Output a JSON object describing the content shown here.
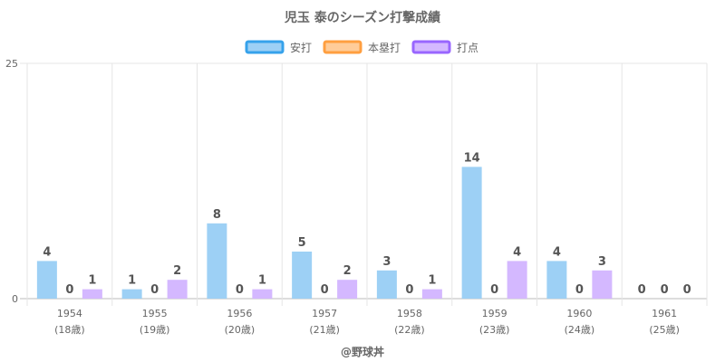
{
  "chart_data": {
    "type": "bar",
    "title": "児玉 泰のシーズン打撃成績",
    "categories": [
      "1954",
      "1955",
      "1956",
      "1957",
      "1958",
      "1959",
      "1960",
      "1961"
    ],
    "category_sublabels": [
      "(18歳)",
      "(19歳)",
      "(20歳)",
      "(21歳)",
      "(22歳)",
      "(23歳)",
      "(24歳)",
      "(25歳)"
    ],
    "series": [
      {
        "name": "安打",
        "values": [
          4,
          1,
          8,
          5,
          3,
          14,
          4,
          0
        ],
        "fill": "#9dd0f5",
        "border": "#36a2eb"
      },
      {
        "name": "本塁打",
        "values": [
          0,
          0,
          0,
          0,
          0,
          0,
          0,
          0
        ],
        "fill": "#ffcc99",
        "border": "#ff9f40"
      },
      {
        "name": "打点",
        "values": [
          1,
          2,
          1,
          2,
          1,
          4,
          3,
          0
        ],
        "fill": "#d4b8ff",
        "border": "#9966ff"
      }
    ],
    "ylim": [
      0,
      25
    ],
    "yticks": [
      0,
      25
    ],
    "grid": true,
    "legend_position": "top",
    "credit": "@野球丼"
  }
}
